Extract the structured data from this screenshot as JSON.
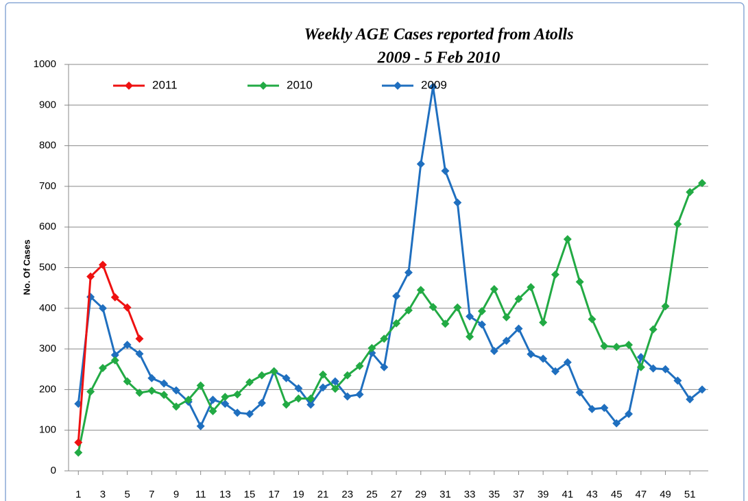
{
  "chart_data": {
    "type": "line",
    "title": "Weekly AGE Cases reported from Atolls",
    "subtitle": "2009 -  5 Feb 2010",
    "y_label": "No. Of Cases",
    "x": [
      1,
      2,
      3,
      4,
      5,
      6,
      7,
      8,
      9,
      10,
      11,
      12,
      13,
      14,
      15,
      16,
      17,
      18,
      19,
      20,
      21,
      22,
      23,
      24,
      25,
      26,
      27,
      28,
      29,
      30,
      31,
      32,
      33,
      34,
      35,
      36,
      37,
      38,
      39,
      40,
      41,
      42,
      43,
      44,
      45,
      46,
      47,
      48,
      49,
      50,
      51,
      52
    ],
    "xlim": [
      0.2,
      52.5
    ],
    "xticks": [
      1,
      3,
      5,
      7,
      9,
      11,
      13,
      15,
      17,
      19,
      21,
      23,
      25,
      27,
      29,
      31,
      33,
      35,
      37,
      39,
      41,
      43,
      45,
      47,
      49,
      51
    ],
    "ylim": [
      0,
      1000
    ],
    "yticks": [
      0,
      100,
      200,
      300,
      400,
      500,
      600,
      700,
      800,
      900,
      1000
    ],
    "grid": true,
    "legend": "top-left",
    "series": [
      {
        "name": "2011",
        "color": "#ee1111",
        "values": [
          70,
          478,
          507,
          427,
          402,
          325,
          null,
          null,
          null,
          null,
          null,
          null,
          null,
          null,
          null,
          null,
          null,
          null,
          null,
          null,
          null,
          null,
          null,
          null,
          null,
          null,
          null,
          null,
          null,
          null,
          null,
          null,
          null,
          null,
          null,
          null,
          null,
          null,
          null,
          null,
          null,
          null,
          null,
          null,
          null,
          null,
          null,
          null,
          null,
          null,
          null,
          null
        ]
      },
      {
        "name": "2010",
        "color": "#22aa44",
        "values": [
          45,
          195,
          253,
          272,
          220,
          192,
          197,
          187,
          158,
          175,
          210,
          147,
          182,
          188,
          218,
          235,
          245,
          163,
          178,
          178,
          237,
          202,
          235,
          258,
          302,
          325,
          363,
          395,
          445,
          403,
          362,
          402,
          330,
          393,
          447,
          378,
          423,
          452,
          365,
          483,
          570,
          465,
          373,
          307,
          305,
          310,
          255,
          348,
          405,
          607,
          686,
          708
        ]
      },
      {
        "name": "2009",
        "color": "#1f6fbf",
        "values": [
          165,
          428,
          400,
          285,
          310,
          288,
          228,
          215,
          198,
          170,
          110,
          175,
          165,
          143,
          140,
          167,
          245,
          228,
          203,
          163,
          205,
          220,
          183,
          188,
          290,
          255,
          430,
          488,
          755,
          945,
          738,
          660,
          380,
          360,
          295,
          320,
          350,
          287,
          276,
          245,
          267,
          193,
          152,
          155,
          117,
          140,
          280,
          252,
          250,
          222,
          176,
          200
        ]
      }
    ]
  }
}
